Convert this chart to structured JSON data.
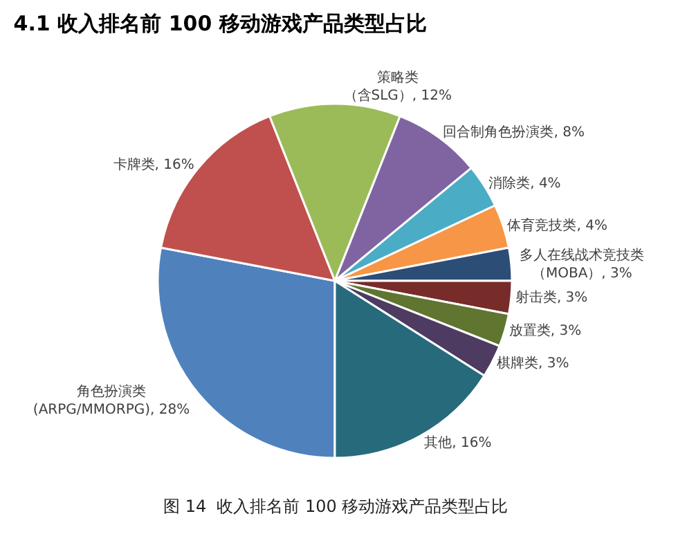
{
  "chart_data": {
    "type": "pie",
    "title": "4.1 收入排名前 100 移动游戏产品类型占比",
    "annotations": [
      "图 14  收入排名前 100 移动游戏产品类型占比"
    ],
    "categories": [
      "角色扮演类(ARPG/MMORPG)",
      "卡牌类",
      "策略类（含SLG）",
      "回合制角色扮演类",
      "消除类",
      "体育竞技类",
      "多人在线战术竞技类（MOBA）",
      "射击类",
      "放置类",
      "棋牌类",
      "其他"
    ],
    "values": [
      28,
      16,
      12,
      8,
      4,
      4,
      3,
      3,
      3,
      3,
      16
    ],
    "value_labels": [
      "28%",
      "16%",
      "12%",
      "8%",
      "4%",
      "4%",
      "3%",
      "3%",
      "3%",
      "3%",
      "16%"
    ],
    "colors": [
      "#4f81bd",
      "#c0504d",
      "#9bbb59",
      "#8064a2",
      "#4bacc6",
      "#f79646",
      "#2c4d75",
      "#772c2a",
      "#5f7530",
      "#4d3b62",
      "#276a7c"
    ],
    "legend": false
  }
}
